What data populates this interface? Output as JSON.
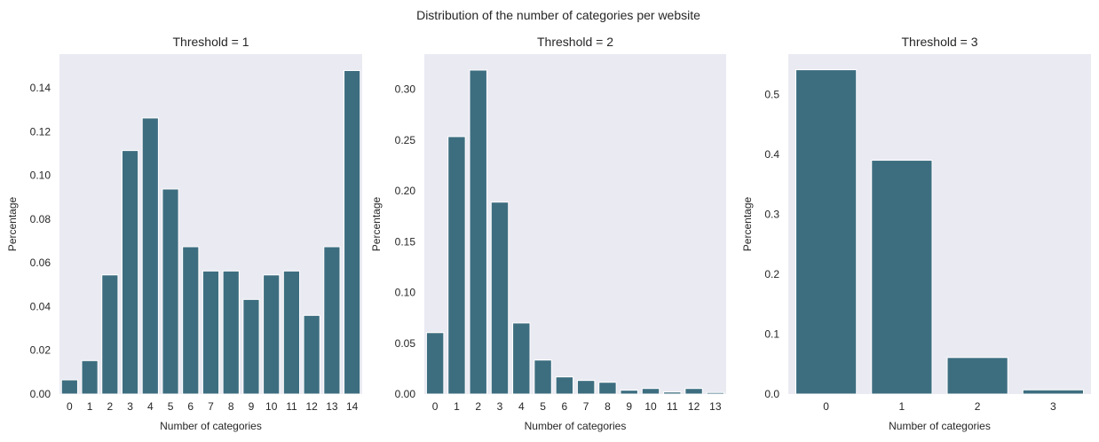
{
  "suptitle": "Distribution of the number of categories per website",
  "colors": {
    "bar": "#3d6e80",
    "axes_bg": "#eaeaf2",
    "edge": "#ffffff"
  },
  "chart_data": [
    {
      "type": "bar",
      "title": "Threshold = 1",
      "xlabel": "Number of categories",
      "ylabel": "Percentage",
      "categories": [
        "0",
        "1",
        "2",
        "3",
        "4",
        "5",
        "6",
        "7",
        "8",
        "9",
        "10",
        "11",
        "12",
        "13",
        "14"
      ],
      "values": [
        0.0065,
        0.0153,
        0.0545,
        0.1114,
        0.1263,
        0.0938,
        0.0674,
        0.0563,
        0.0563,
        0.0433,
        0.0545,
        0.0563,
        0.036,
        0.0674,
        0.148
      ],
      "ylim": [
        0,
        0.1555
      ],
      "yticks": [
        0,
        0.02,
        0.04,
        0.06,
        0.08,
        0.1,
        0.12,
        0.14
      ],
      "ytick_labels": [
        "0.00",
        "0.02",
        "0.04",
        "0.06",
        "0.08",
        "0.10",
        "0.12",
        "0.14"
      ],
      "grid": false
    },
    {
      "type": "bar",
      "title": "Threshold = 2",
      "xlabel": "Number of categories",
      "ylabel": "Percentage",
      "categories": [
        "0",
        "1",
        "2",
        "3",
        "4",
        "5",
        "6",
        "7",
        "8",
        "9",
        "10",
        "11",
        "12",
        "13"
      ],
      "values": [
        0.0605,
        0.2535,
        0.319,
        0.189,
        0.07,
        0.0335,
        0.0169,
        0.0134,
        0.0116,
        0.0038,
        0.0055,
        0.002,
        0.0055,
        0.0015
      ],
      "ylim": [
        0,
        0.3347
      ],
      "yticks": [
        0,
        0.05,
        0.1,
        0.15,
        0.2,
        0.25,
        0.3
      ],
      "ytick_labels": [
        "0.00",
        "0.05",
        "0.10",
        "0.15",
        "0.20",
        "0.25",
        "0.30"
      ],
      "grid": false
    },
    {
      "type": "bar",
      "title": "Threshold = 3",
      "xlabel": "Number of categories",
      "ylabel": "Percentage",
      "categories": [
        "0",
        "1",
        "2",
        "3"
      ],
      "values": [
        0.541,
        0.39,
        0.061,
        0.007
      ],
      "ylim": [
        0,
        0.567
      ],
      "yticks": [
        0,
        0.1,
        0.2,
        0.3,
        0.4,
        0.5
      ],
      "ytick_labels": [
        "0.0",
        "0.1",
        "0.2",
        "0.3",
        "0.4",
        "0.5"
      ],
      "grid": false
    }
  ]
}
